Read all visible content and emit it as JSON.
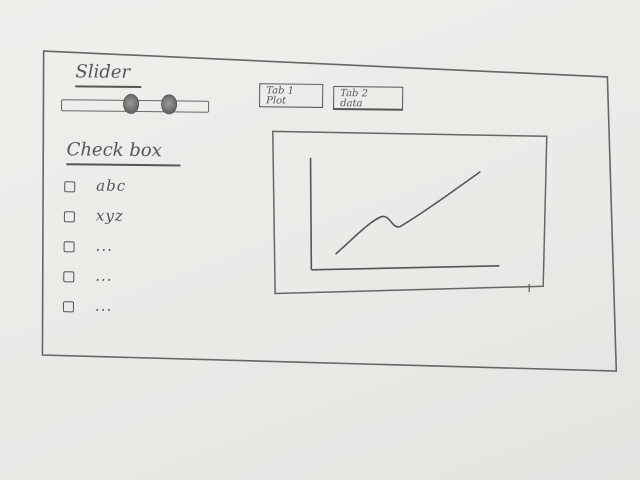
{
  "slider": {
    "title": "Slider",
    "range_low": 0.47,
    "range_high": 0.73
  },
  "checkbox_group": {
    "title": "Check box",
    "items": [
      {
        "label": "abc",
        "checked": false
      },
      {
        "label": "xyz",
        "checked": false
      },
      {
        "label": "...",
        "checked": false
      },
      {
        "label": "...",
        "checked": false
      },
      {
        "label": "...",
        "checked": false
      }
    ]
  },
  "tabs": [
    {
      "line1": "Tab 1",
      "line2": "Plot",
      "selected": false
    },
    {
      "line1": "Tab 2",
      "line2": "data",
      "selected": true
    }
  ],
  "colors": {
    "paper": "#eceae7",
    "pencil": "#555555"
  }
}
